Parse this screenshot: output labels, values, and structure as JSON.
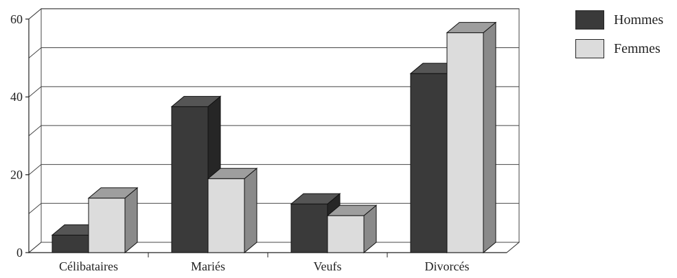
{
  "chart_data": {
    "type": "bar",
    "categories": [
      "Célibataires",
      "Mariés",
      "Veufs",
      "Divorcés"
    ],
    "series": [
      {
        "name": "Hommes",
        "values": [
          4.5,
          37.5,
          12.5,
          46
        ],
        "color": "#3a3a3a"
      },
      {
        "name": "Femmes",
        "values": [
          14,
          19,
          9.5,
          56.5
        ],
        "color": "#dcdcdc"
      }
    ],
    "yticks": [
      0,
      20,
      40,
      60
    ],
    "ylim": [
      0,
      60
    ],
    "grid": true,
    "legend_position": "top-right",
    "three_d": true
  }
}
